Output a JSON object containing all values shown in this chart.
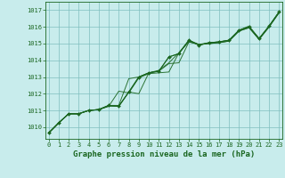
{
  "title": "Graphe pression niveau de la mer (hPa)",
  "bg_color": "#c8ecec",
  "grid_color": "#7fbfbf",
  "line_color": "#1a6620",
  "x_ticks": [
    0,
    1,
    2,
    3,
    4,
    5,
    6,
    7,
    8,
    9,
    10,
    11,
    12,
    13,
    14,
    15,
    16,
    17,
    18,
    19,
    20,
    21,
    22,
    23
  ],
  "y_ticks": [
    1010,
    1011,
    1012,
    1013,
    1014,
    1015,
    1016,
    1017
  ],
  "xlim": [
    -0.3,
    23.3
  ],
  "ylim": [
    1009.3,
    1017.5
  ],
  "series": [
    [
      1009.65,
      1010.25,
      1010.8,
      1010.8,
      1011.0,
      1011.05,
      1011.25,
      1012.15,
      1012.05,
      1012.95,
      1013.2,
      1013.25,
      1013.3,
      1014.45,
      1015.1,
      1014.95,
      1015.0,
      1015.05,
      1015.15,
      1015.75,
      1015.95,
      1015.25,
      1016.0,
      1016.85
    ],
    [
      1009.65,
      1010.25,
      1010.8,
      1010.8,
      1011.0,
      1011.05,
      1011.25,
      1011.25,
      1012.1,
      1012.0,
      1013.25,
      1013.35,
      1013.8,
      1013.85,
      1015.1,
      1014.95,
      1015.0,
      1015.05,
      1015.15,
      1015.75,
      1015.95,
      1015.25,
      1016.0,
      1016.85
    ],
    [
      1009.65,
      1010.25,
      1010.8,
      1010.8,
      1011.0,
      1011.05,
      1011.3,
      1011.25,
      1012.1,
      1013.0,
      1013.25,
      1013.35,
      1014.2,
      1014.4,
      1015.2,
      1014.9,
      1015.05,
      1015.1,
      1015.2,
      1015.8,
      1016.0,
      1015.3,
      1016.05,
      1016.9
    ],
    [
      1009.65,
      1010.25,
      1010.8,
      1010.8,
      1011.0,
      1011.05,
      1011.3,
      1011.3,
      1012.9,
      1013.0,
      1013.25,
      1013.4,
      1013.85,
      1014.45,
      1015.2,
      1014.95,
      1015.05,
      1015.1,
      1015.2,
      1015.8,
      1016.05,
      1015.3,
      1016.05,
      1016.9
    ]
  ],
  "main_series_idx": 2,
  "title_fontsize": 6.5,
  "tick_fontsize": 5.0,
  "label_color": "#1a6620"
}
